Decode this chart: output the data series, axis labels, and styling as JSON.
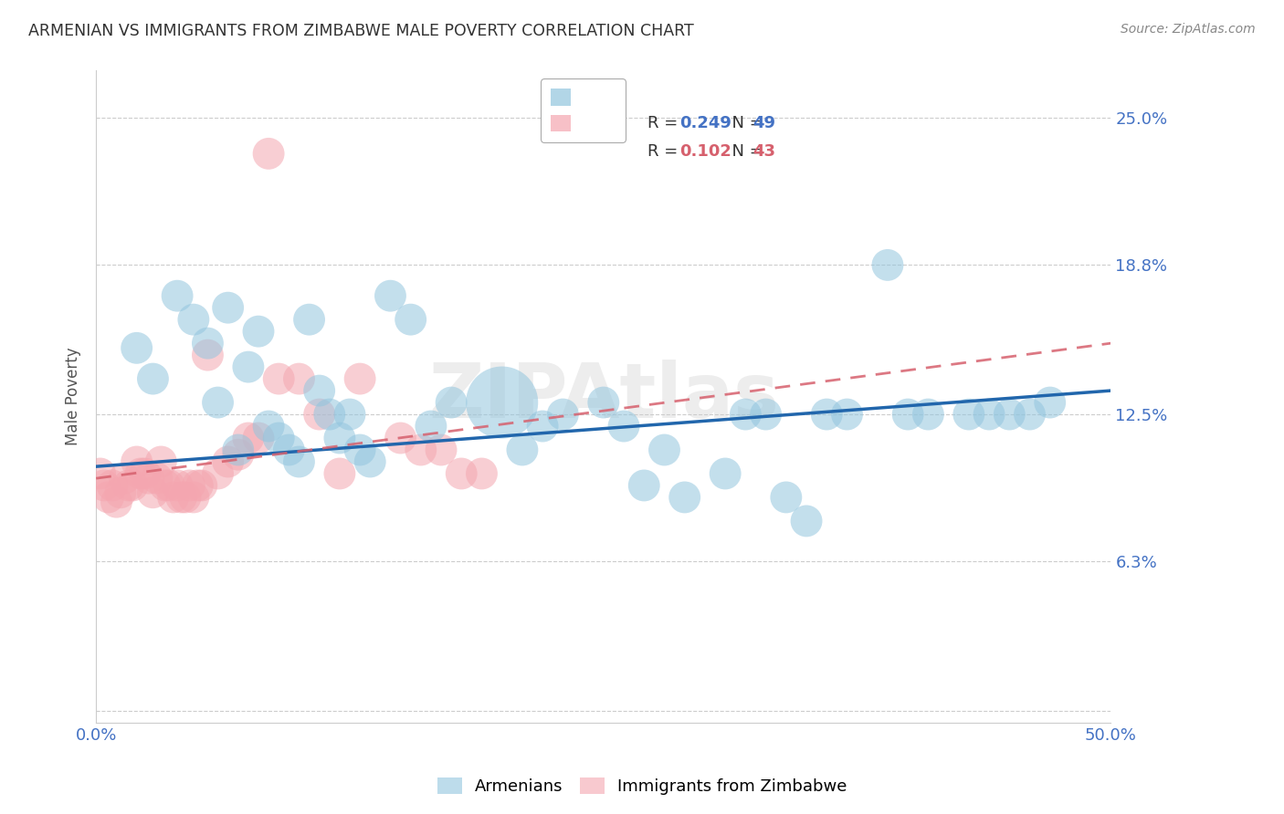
{
  "title": "ARMENIAN VS IMMIGRANTS FROM ZIMBABWE MALE POVERTY CORRELATION CHART",
  "source": "Source: ZipAtlas.com",
  "ylabel": "Male Poverty",
  "yticks": [
    0.0,
    0.063,
    0.125,
    0.188,
    0.25
  ],
  "ytick_labels": [
    "",
    "6.3%",
    "12.5%",
    "18.8%",
    "25.0%"
  ],
  "xlim": [
    0.0,
    0.5
  ],
  "ylim": [
    -0.005,
    0.27
  ],
  "blue_R": 0.249,
  "blue_N": 49,
  "pink_R": 0.102,
  "pink_N": 43,
  "blue_color": "#92c5de",
  "pink_color": "#f4a6b0",
  "blue_line_color": "#2166ac",
  "pink_line_color": "#d6606d",
  "title_color": "#333333",
  "axis_label_color": "#4472c4",
  "watermark": "ZIPAtlas",
  "armenians_x": [
    0.02,
    0.028,
    0.04,
    0.048,
    0.055,
    0.06,
    0.065,
    0.07,
    0.075,
    0.08,
    0.085,
    0.09,
    0.095,
    0.1,
    0.105,
    0.11,
    0.115,
    0.12,
    0.125,
    0.13,
    0.135,
    0.145,
    0.155,
    0.165,
    0.175,
    0.2,
    0.21,
    0.22,
    0.23,
    0.25,
    0.26,
    0.27,
    0.28,
    0.29,
    0.31,
    0.32,
    0.33,
    0.34,
    0.35,
    0.36,
    0.37,
    0.39,
    0.4,
    0.41,
    0.43,
    0.44,
    0.45,
    0.46,
    0.47
  ],
  "armenians_y": [
    0.153,
    0.14,
    0.175,
    0.165,
    0.155,
    0.13,
    0.17,
    0.11,
    0.145,
    0.16,
    0.12,
    0.115,
    0.11,
    0.105,
    0.165,
    0.135,
    0.125,
    0.115,
    0.125,
    0.11,
    0.105,
    0.175,
    0.165,
    0.12,
    0.13,
    0.13,
    0.11,
    0.12,
    0.125,
    0.13,
    0.12,
    0.095,
    0.11,
    0.09,
    0.1,
    0.125,
    0.125,
    0.09,
    0.08,
    0.125,
    0.125,
    0.188,
    0.125,
    0.125,
    0.125,
    0.125,
    0.125,
    0.125,
    0.13
  ],
  "armenians_size": [
    35,
    35,
    35,
    35,
    35,
    35,
    35,
    35,
    35,
    35,
    35,
    35,
    35,
    35,
    35,
    35,
    35,
    35,
    35,
    35,
    35,
    35,
    35,
    35,
    35,
    180,
    35,
    35,
    35,
    35,
    35,
    35,
    35,
    35,
    35,
    35,
    35,
    35,
    35,
    35,
    35,
    35,
    35,
    35,
    35,
    35,
    35,
    35,
    35
  ],
  "zimbabwe_x": [
    0.002,
    0.004,
    0.006,
    0.008,
    0.01,
    0.012,
    0.014,
    0.016,
    0.018,
    0.02,
    0.022,
    0.024,
    0.026,
    0.028,
    0.03,
    0.032,
    0.034,
    0.036,
    0.038,
    0.04,
    0.042,
    0.044,
    0.046,
    0.048,
    0.05,
    0.052,
    0.055,
    0.06,
    0.065,
    0.07,
    0.075,
    0.08,
    0.085,
    0.09,
    0.1,
    0.11,
    0.12,
    0.13,
    0.15,
    0.16,
    0.17,
    0.18,
    0.19
  ],
  "zimbabwe_y": [
    0.1,
    0.095,
    0.09,
    0.095,
    0.088,
    0.092,
    0.098,
    0.095,
    0.095,
    0.105,
    0.1,
    0.1,
    0.098,
    0.092,
    0.098,
    0.105,
    0.095,
    0.095,
    0.09,
    0.095,
    0.09,
    0.09,
    0.095,
    0.09,
    0.095,
    0.095,
    0.15,
    0.1,
    0.105,
    0.108,
    0.115,
    0.115,
    0.235,
    0.14,
    0.14,
    0.125,
    0.1,
    0.14,
    0.115,
    0.11,
    0.11,
    0.1,
    0.1
  ],
  "zimbabwe_size": [
    35,
    35,
    35,
    35,
    35,
    35,
    35,
    35,
    35,
    35,
    35,
    35,
    35,
    35,
    35,
    35,
    35,
    35,
    35,
    35,
    35,
    35,
    35,
    35,
    35,
    35,
    35,
    35,
    35,
    35,
    35,
    35,
    35,
    35,
    35,
    35,
    35,
    35,
    35,
    35,
    35,
    35,
    35
  ],
  "blue_trend_x0": 0.0,
  "blue_trend_y0": 0.103,
  "blue_trend_x1": 0.5,
  "blue_trend_y1": 0.135,
  "pink_trend_x0": 0.0,
  "pink_trend_y0": 0.098,
  "pink_trend_x1": 0.5,
  "pink_trend_y1": 0.155
}
